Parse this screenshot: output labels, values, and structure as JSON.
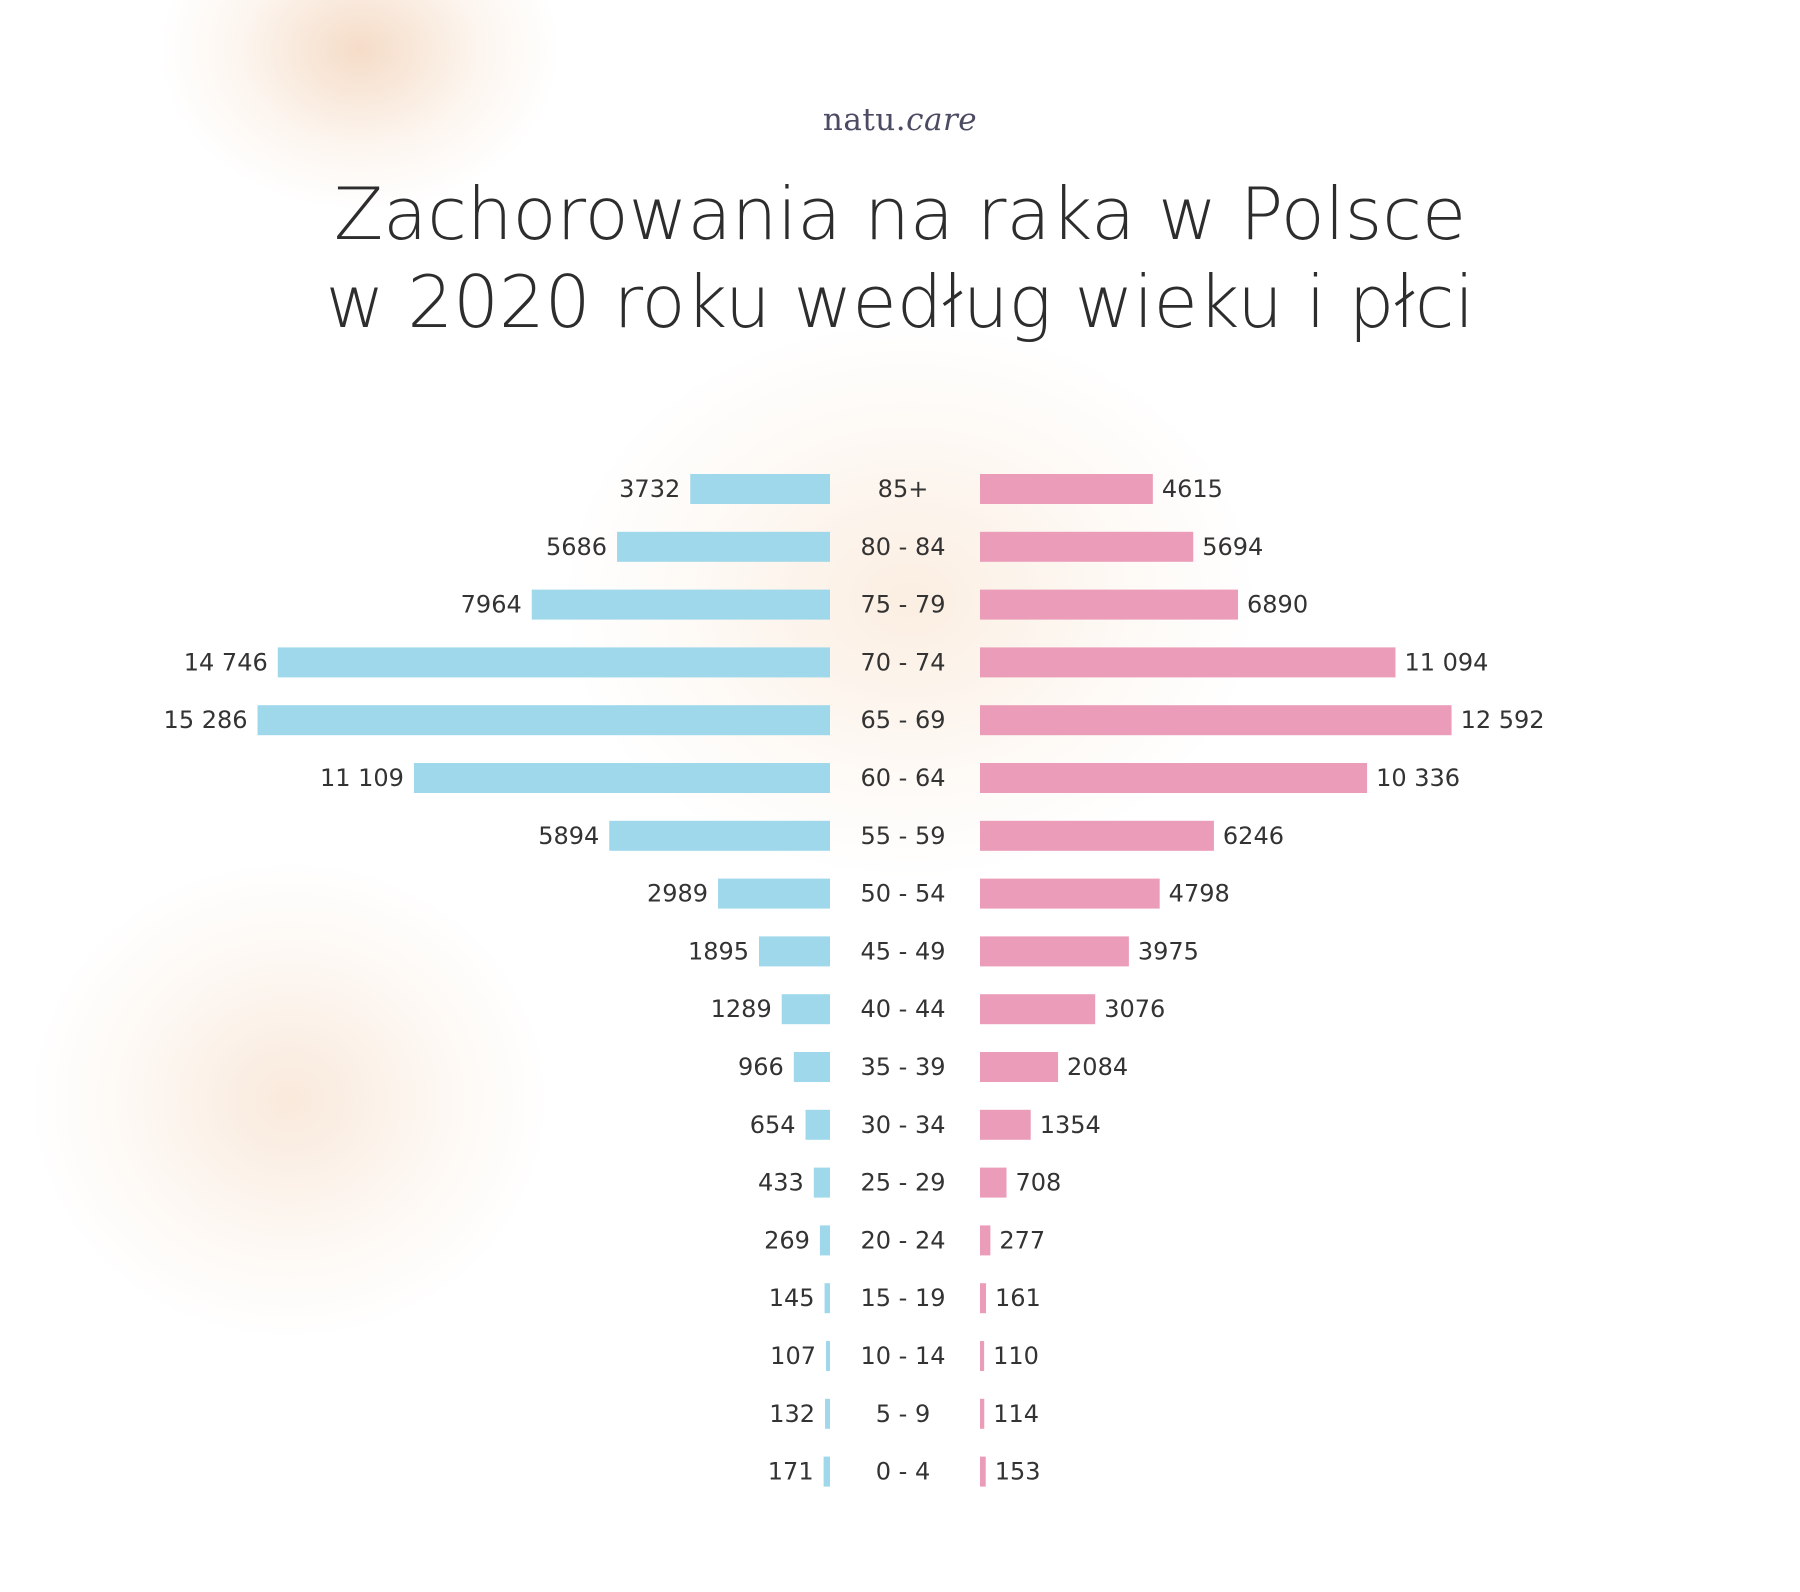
{
  "logo": {
    "brand": "natu.",
    "suffix": "care"
  },
  "title": {
    "line1": "Zachorowania na raka w Polsce",
    "line2": "w 2020 roku według wieku i płci"
  },
  "colors": {
    "male": "#9fd8ea",
    "female": "#eb9cb9",
    "text": "#333333"
  },
  "chart_data": {
    "type": "bar",
    "orientation": "horizontal-diverging",
    "categories": [
      "85+",
      "80 - 84",
      "75 - 79",
      "70 - 74",
      "65 - 69",
      "60 - 64",
      "55 - 59",
      "50 - 54",
      "45 - 49",
      "40 - 44",
      "35 - 39",
      "30 - 34",
      "25 - 29",
      "20 - 24",
      "15 - 19",
      "10 - 14",
      "5 - 9",
      "0 - 4"
    ],
    "series": [
      {
        "color": "#9fd8ea",
        "values": [
          3732,
          5686,
          7964,
          14746,
          15286,
          11109,
          5894,
          2989,
          1895,
          1289,
          966,
          654,
          433,
          269,
          145,
          107,
          132,
          171
        ],
        "labels": [
          "3732",
          "5686",
          "7964",
          "14 746",
          "15 286",
          "11 109",
          "5894",
          "2989",
          "1895",
          "1289",
          "966",
          "654",
          "433",
          "269",
          "145",
          "107",
          "132",
          "171"
        ]
      },
      {
        "color": "#eb9cb9",
        "values": [
          4615,
          5694,
          6890,
          11094,
          12592,
          10336,
          6246,
          4798,
          3975,
          3076,
          2084,
          1354,
          708,
          277,
          161,
          110,
          114,
          153
        ],
        "labels": [
          "4615",
          "5694",
          "6890",
          "11 094",
          "12 592",
          "10 336",
          "6246",
          "4798",
          "3975",
          "3076",
          "2084",
          "1354",
          "708",
          "277",
          "161",
          "110",
          "114",
          "153"
        ]
      }
    ],
    "grid": false,
    "legend": "none"
  }
}
